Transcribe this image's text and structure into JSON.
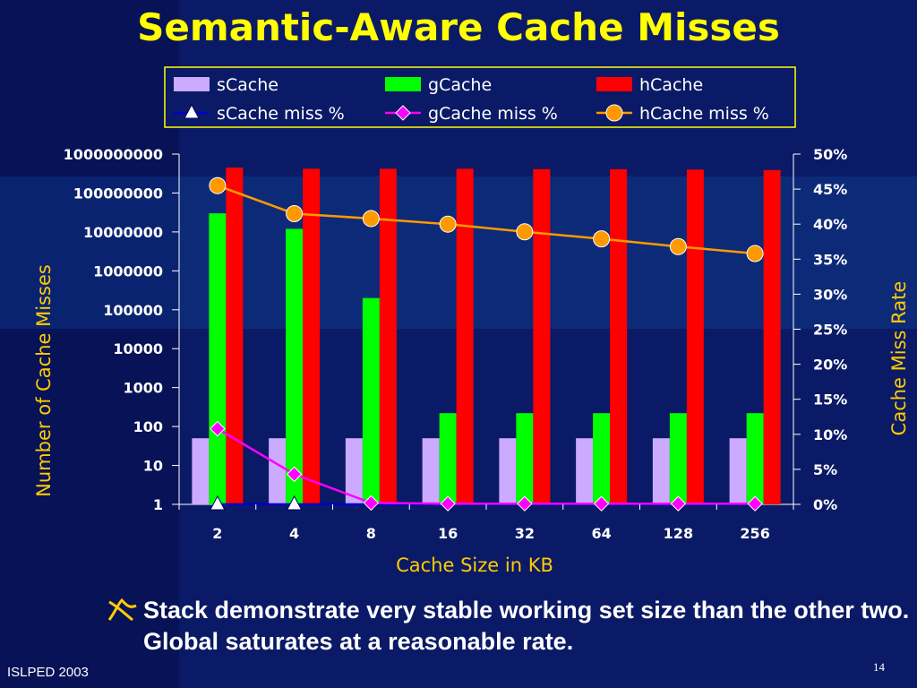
{
  "slide": {
    "title": "Semantic-Aware Cache Misses",
    "bullet": "Stack demonstrate very stable working set size than the other two. Global saturates at a reasonable rate.",
    "footer_left": "ISLPED 2003",
    "page_number": "14",
    "bullet_icon": "ribbon-bullet-icon"
  },
  "colors": {
    "background": "#0b1a66",
    "title": "#ffff00",
    "axis_title": "#ffcc00",
    "sCache": "#ccaaff",
    "gCache": "#00ff00",
    "hCache": "#ff0000",
    "sCache_line": "#0000cc",
    "gCache_line": "#ff00ff",
    "hCache_line": "#ff9900"
  },
  "chart_data": {
    "type": "bar",
    "categories": [
      "2",
      "4",
      "8",
      "16",
      "32",
      "64",
      "128",
      "256"
    ],
    "xlabel": "Cache Size in KB",
    "ylabel": "Number of Cache Misses",
    "y2label": "Cache Miss Rate",
    "yscale": "log",
    "ylim": [
      1,
      1000000000
    ],
    "yticks": [
      "1000000000",
      "100000000",
      "10000000",
      "1000000",
      "100000",
      "10000",
      "1000",
      "100",
      "10",
      "1"
    ],
    "y2lim": [
      0,
      50
    ],
    "y2ticks": [
      "50%",
      "45%",
      "40%",
      "35%",
      "30%",
      "25%",
      "20%",
      "15%",
      "10%",
      "5%",
      "0%"
    ],
    "legend_position": "top",
    "series": [
      {
        "name": "sCache",
        "kind": "bar",
        "axis": "left",
        "values": [
          50,
          50,
          50,
          50,
          50,
          50,
          50,
          50
        ]
      },
      {
        "name": "gCache",
        "kind": "bar",
        "axis": "left",
        "values": [
          30000000,
          12000000,
          200000,
          220,
          220,
          220,
          220,
          220
        ]
      },
      {
        "name": "hCache",
        "kind": "bar",
        "axis": "left",
        "values": [
          450000000,
          420000000,
          420000000,
          420000000,
          410000000,
          410000000,
          400000000,
          390000000
        ]
      },
      {
        "name": "sCache miss %",
        "kind": "line",
        "axis": "right",
        "marker": "triangle",
        "values": [
          0,
          0,
          0,
          0,
          0,
          0,
          0,
          0
        ]
      },
      {
        "name": "gCache miss %",
        "kind": "line",
        "axis": "right",
        "marker": "diamond",
        "values": [
          10.8,
          4.3,
          0.2,
          0.1,
          0.1,
          0.1,
          0.1,
          0.1
        ]
      },
      {
        "name": "hCache miss %",
        "kind": "line",
        "axis": "right",
        "marker": "circle",
        "values": [
          45.5,
          41.5,
          40.8,
          40.0,
          38.9,
          37.9,
          36.8,
          35.8
        ]
      }
    ]
  }
}
